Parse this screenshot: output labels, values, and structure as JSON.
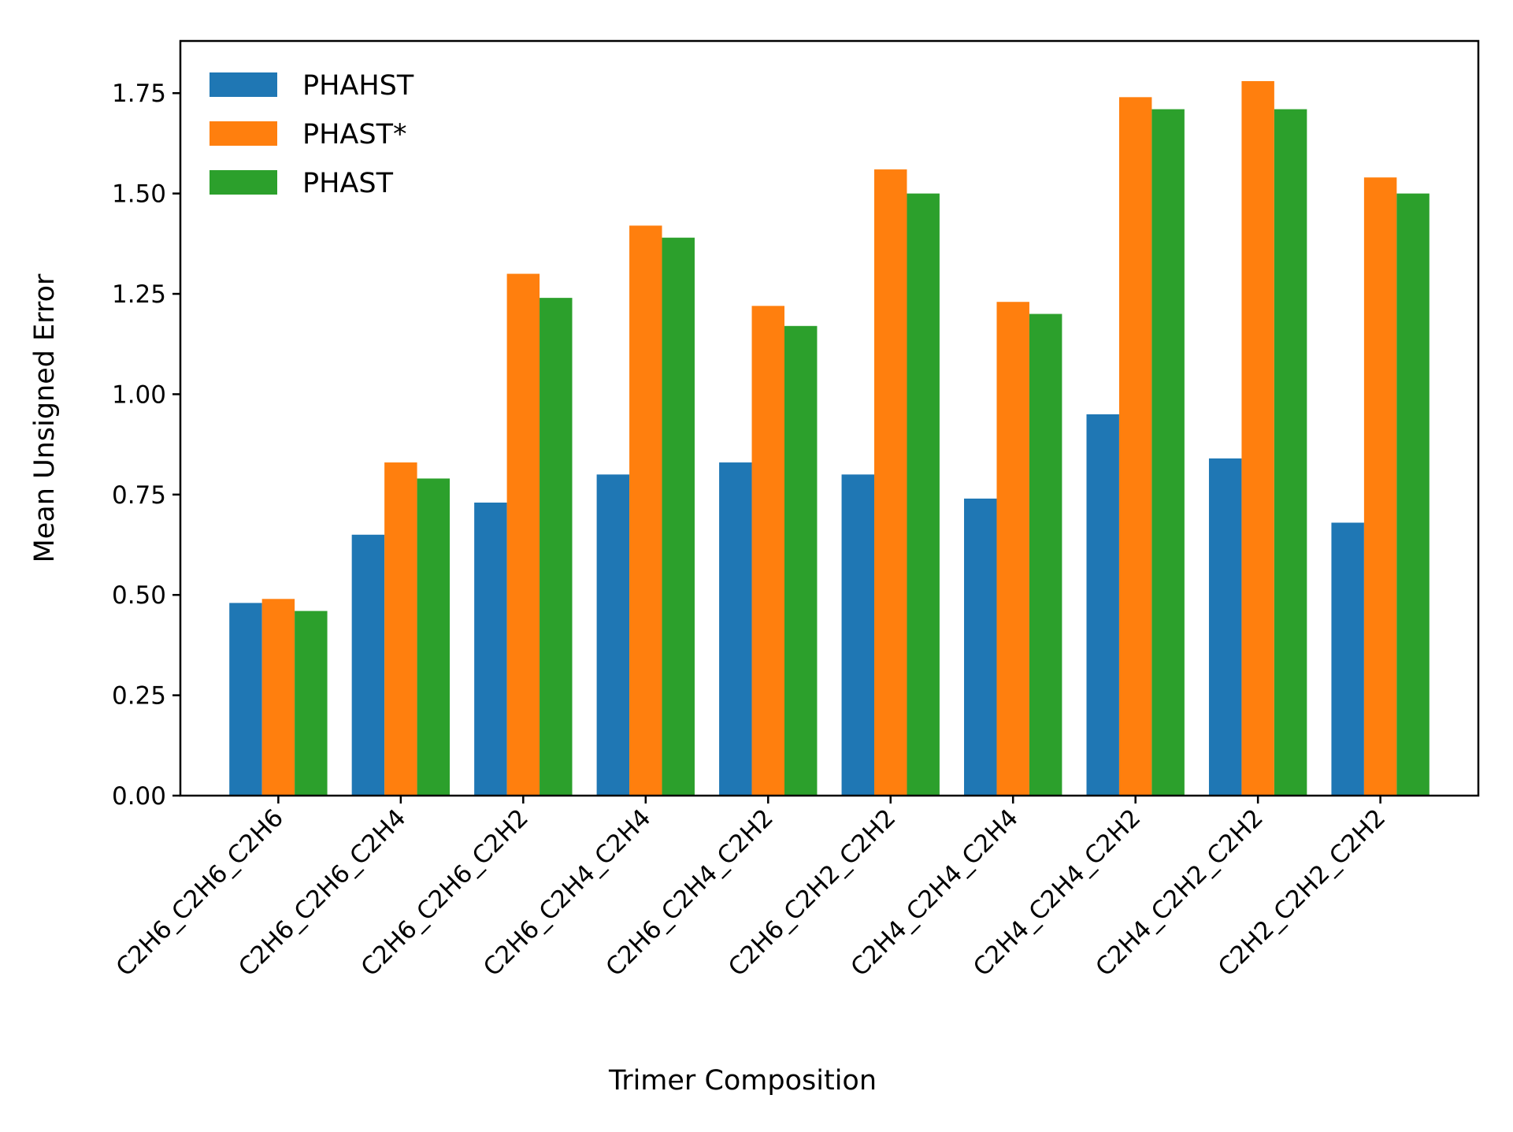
{
  "chart_data": {
    "type": "bar",
    "title": "",
    "xlabel": "Trimer Composition",
    "ylabel": "Mean Unsigned Error",
    "ylim": [
      0,
      1.88
    ],
    "yticks": [
      "0.00",
      "0.25",
      "0.50",
      "0.75",
      "1.00",
      "1.25",
      "1.50",
      "1.75"
    ],
    "categories": [
      "C2H6_C2H6_C2H6",
      "C2H6_C2H6_C2H4",
      "C2H6_C2H6_C2H2",
      "C2H6_C2H4_C2H4",
      "C2H6_C2H4_C2H2",
      "C2H6_C2H2_C2H2",
      "C2H4_C2H4_C2H4",
      "C2H4_C2H4_C2H2",
      "C2H4_C2H2_C2H2",
      "C2H2_C2H2_C2H2"
    ],
    "series": [
      {
        "name": "PHAHST",
        "color": "#1f77b4",
        "values": [
          0.48,
          0.65,
          0.73,
          0.8,
          0.83,
          0.8,
          0.74,
          0.95,
          0.84,
          0.68
        ]
      },
      {
        "name": "PHAST*",
        "color": "#ff7f0e",
        "values": [
          0.49,
          0.83,
          1.3,
          1.42,
          1.22,
          1.56,
          1.23,
          1.74,
          1.78,
          1.54
        ]
      },
      {
        "name": "PHAST",
        "color": "#2ca02c",
        "values": [
          0.46,
          0.79,
          1.24,
          1.39,
          1.17,
          1.5,
          1.2,
          1.71,
          1.71,
          1.5
        ]
      }
    ],
    "legend_position": "top-left",
    "grid": false
  }
}
